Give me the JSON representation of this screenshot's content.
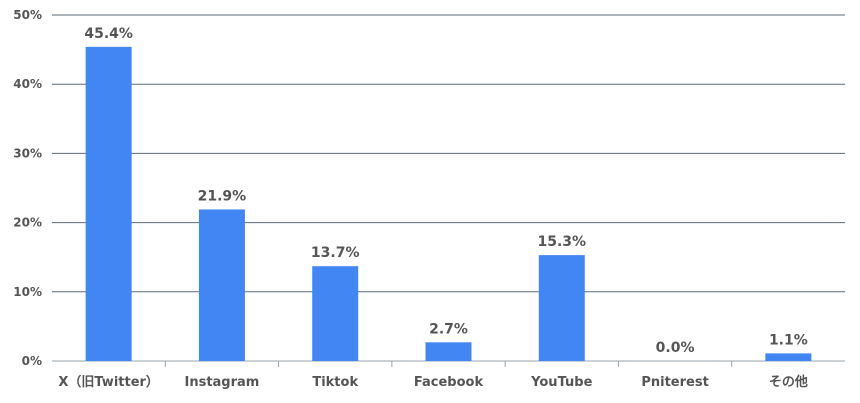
{
  "chart_data": {
    "type": "bar",
    "categories": [
      "X（旧Twitter）",
      "Instagram",
      "Tiktok",
      "Facebook",
      "YouTube",
      "Pniterest",
      "その他"
    ],
    "values": [
      45.4,
      21.9,
      13.7,
      2.7,
      15.3,
      0.0,
      1.1
    ],
    "data_labels": [
      "45.4%",
      "21.9%",
      "13.7%",
      "2.7%",
      "15.3%",
      "0.0%",
      "1.1%"
    ],
    "ylim": [
      0,
      50
    ],
    "yticks": [
      0,
      10,
      20,
      30,
      40,
      50
    ],
    "ytick_labels": [
      "0%",
      "10%",
      "20%",
      "30%",
      "40%",
      "50%"
    ],
    "bar_color": "#4286f4",
    "grid": true,
    "legend": "none"
  }
}
